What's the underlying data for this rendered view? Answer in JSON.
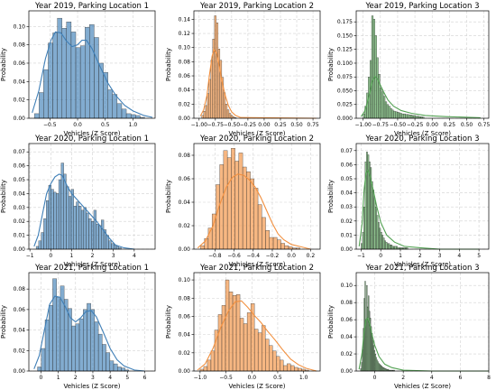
{
  "colors": {
    "blue": "#3f7fb7",
    "orange": "#f2903f",
    "green": "#52a152",
    "grid": "#d2d2d2"
  },
  "chart_data": [
    {
      "type": "histogram",
      "title": "Year 2019, Parking Location 1",
      "xlabel": "Vehicles (Z Score)",
      "ylabel": "Probability",
      "color": "blue",
      "xlim": [
        -0.88,
        1.4
      ],
      "ylim": [
        0,
        0.117
      ],
      "xticks": [
        -0.5,
        0.0,
        0.5,
        1.0
      ],
      "xtick_labels": [
        "−0.5",
        "0.0",
        "0.5",
        "1.0"
      ],
      "yticks": [
        0.0,
        0.02,
        0.04,
        0.06,
        0.08,
        0.1
      ],
      "ytick_labels": [
        "0.00",
        "0.02",
        "0.04",
        "0.06",
        "0.08",
        "0.10"
      ],
      "bins_start": -0.78,
      "bin_width": 0.083,
      "values": [
        0.005,
        0.028,
        0.053,
        0.082,
        0.093,
        0.109,
        0.098,
        0.105,
        0.094,
        0.077,
        0.079,
        0.099,
        0.102,
        0.088,
        0.06,
        0.05,
        0.031,
        0.026,
        0.016,
        0.01,
        0.005,
        0.004,
        0.003,
        0.001
      ],
      "kde": [
        [
          -0.82,
          0.006
        ],
        [
          -0.7,
          0.03
        ],
        [
          -0.58,
          0.065
        ],
        [
          -0.48,
          0.085
        ],
        [
          -0.4,
          0.094
        ],
        [
          -0.3,
          0.093
        ],
        [
          -0.2,
          0.084
        ],
        [
          -0.1,
          0.078
        ],
        [
          0.0,
          0.08
        ],
        [
          0.08,
          0.085
        ],
        [
          0.16,
          0.085
        ],
        [
          0.26,
          0.076
        ],
        [
          0.4,
          0.057
        ],
        [
          0.55,
          0.038
        ],
        [
          0.7,
          0.024
        ],
        [
          0.85,
          0.014
        ],
        [
          1.0,
          0.008
        ],
        [
          1.2,
          0.003
        ],
        [
          1.35,
          0.001
        ]
      ]
    },
    {
      "type": "histogram",
      "title": "Year 2019, Parking Location 2",
      "xlabel": "Vehicles (Z Score)",
      "ylabel": "Probability",
      "color": "orange",
      "xlim": [
        -1.08,
        0.86
      ],
      "ylim": [
        0,
        0.152
      ],
      "xticks": [
        -1.0,
        -0.75,
        -0.5,
        -0.25,
        0.0,
        0.25,
        0.5,
        0.75
      ],
      "xtick_labels": [
        "−1.00",
        "−0.75",
        "−0.50",
        "−0.25",
        "0.00",
        "0.25",
        "0.50",
        "0.75"
      ],
      "yticks": [
        0.0,
        0.02,
        0.04,
        0.06,
        0.08,
        0.1,
        0.12,
        0.14
      ],
      "ytick_labels": [
        "0.00",
        "0.02",
        "0.04",
        "0.06",
        "0.08",
        "0.10",
        "0.12",
        "0.14"
      ],
      "bins_start": -0.96,
      "bin_width": 0.028,
      "values": [
        0.004,
        0.01,
        0.018,
        0.035,
        0.055,
        0.082,
        0.112,
        0.145,
        0.135,
        0.098,
        0.082,
        0.058,
        0.036,
        0.02,
        0.012,
        0.007,
        0.004,
        0.002,
        0.001
      ],
      "kde": [
        [
          -0.98,
          0.003
        ],
        [
          -0.93,
          0.012
        ],
        [
          -0.88,
          0.032
        ],
        [
          -0.84,
          0.062
        ],
        [
          -0.8,
          0.088
        ],
        [
          -0.77,
          0.097
        ],
        [
          -0.73,
          0.092
        ],
        [
          -0.69,
          0.074
        ],
        [
          -0.65,
          0.053
        ],
        [
          -0.6,
          0.033
        ],
        [
          -0.55,
          0.018
        ],
        [
          -0.5,
          0.009
        ],
        [
          -0.44,
          0.004
        ],
        [
          -0.36,
          0.001
        ],
        [
          0.8,
          0.0
        ]
      ]
    },
    {
      "type": "histogram",
      "title": "Year 2019, Parking Location 3",
      "xlabel": "Vehicles (Z Score)",
      "ylabel": "Probability",
      "color": "green",
      "xlim": [
        -1.1,
        0.82
      ],
      "ylim": [
        0,
        0.195
      ],
      "xticks": [
        -1.0,
        -0.75,
        -0.5,
        -0.25,
        0.0,
        0.25,
        0.5,
        0.75
      ],
      "xtick_labels": [
        "−1.00",
        "−0.75",
        "−0.50",
        "−0.25",
        "0.00",
        "0.25",
        "0.50",
        "0.75"
      ],
      "yticks": [
        0.0,
        0.025,
        0.05,
        0.075,
        0.1,
        0.125,
        0.15,
        0.175
      ],
      "ytick_labels": [
        "0.000",
        "0.025",
        "0.050",
        "0.075",
        "0.100",
        "0.125",
        "0.150",
        "0.175"
      ],
      "bins_start": -1.0,
      "bin_width": 0.0245,
      "values": [
        0.008,
        0.022,
        0.046,
        0.075,
        0.105,
        0.186,
        0.18,
        0.15,
        0.11,
        0.08,
        0.055,
        0.048,
        0.04,
        0.03,
        0.025,
        0.022,
        0.018,
        0.015,
        0.013,
        0.012,
        0.011,
        0.01,
        0.009,
        0.008,
        0.008,
        0.007,
        0.007,
        0.006,
        0.006,
        0.005,
        0.005,
        0.004,
        0.004,
        0.003,
        0.003,
        0.002
      ],
      "kde": [
        [
          -1.03,
          0.003
        ],
        [
          -0.98,
          0.012
        ],
        [
          -0.94,
          0.028
        ],
        [
          -0.9,
          0.048
        ],
        [
          -0.87,
          0.066
        ],
        [
          -0.83,
          0.076
        ],
        [
          -0.79,
          0.071
        ],
        [
          -0.75,
          0.06
        ],
        [
          -0.7,
          0.047
        ],
        [
          -0.64,
          0.033
        ],
        [
          -0.56,
          0.022
        ],
        [
          -0.45,
          0.014
        ],
        [
          -0.3,
          0.009
        ],
        [
          -0.1,
          0.005
        ],
        [
          0.2,
          0.003
        ],
        [
          0.7,
          0.001
        ]
      ]
    },
    {
      "type": "histogram",
      "title": "Year 2020, Parking Location 1",
      "xlabel": "Vehicles (Z Score)",
      "ylabel": "Probability",
      "color": "blue",
      "xlim": [
        -1.05,
        5.0
      ],
      "ylim": [
        0,
        0.076
      ],
      "xticks": [
        -1,
        0,
        1,
        2,
        3,
        4
      ],
      "xtick_labels": [
        "−1",
        "0",
        "1",
        "2",
        "3",
        "4"
      ],
      "yticks": [
        0.0,
        0.01,
        0.02,
        0.03,
        0.04,
        0.05,
        0.06,
        0.07
      ],
      "ytick_labels": [
        "0.00",
        "0.01",
        "0.02",
        "0.03",
        "0.04",
        "0.05",
        "0.06",
        "0.07"
      ],
      "bins_start": -0.7,
      "bin_width": 0.12,
      "values": [
        0.002,
        0.006,
        0.012,
        0.022,
        0.035,
        0.046,
        0.043,
        0.041,
        0.04,
        0.05,
        0.062,
        0.054,
        0.045,
        0.038,
        0.043,
        0.031,
        0.034,
        0.031,
        0.028,
        0.03,
        0.026,
        0.022,
        0.02,
        0.028,
        0.018,
        0.017,
        0.021,
        0.014,
        0.01,
        0.006,
        0.004,
        0.003,
        0.002,
        0.001
      ],
      "kde": [
        [
          -0.8,
          0.002
        ],
        [
          -0.6,
          0.01
        ],
        [
          -0.4,
          0.025
        ],
        [
          -0.2,
          0.04
        ],
        [
          0.0,
          0.047
        ],
        [
          0.2,
          0.052
        ],
        [
          0.4,
          0.054
        ],
        [
          0.55,
          0.053
        ],
        [
          0.8,
          0.045
        ],
        [
          1.0,
          0.04
        ],
        [
          1.3,
          0.035
        ],
        [
          1.6,
          0.03
        ],
        [
          1.9,
          0.025
        ],
        [
          2.2,
          0.02
        ],
        [
          2.5,
          0.014
        ],
        [
          2.8,
          0.008
        ],
        [
          3.1,
          0.003
        ],
        [
          3.5,
          0.001
        ],
        [
          4.0,
          0.0
        ]
      ]
    },
    {
      "type": "histogram",
      "title": "Year 2020, Parking Location 2",
      "xlabel": "Vehicles (Z Score)",
      "ylabel": "Probability",
      "color": "orange",
      "xlim": [
        -1.02,
        0.3
      ],
      "ylim": [
        0,
        0.09
      ],
      "xticks": [
        -0.8,
        -0.6,
        -0.4,
        -0.2,
        0.0,
        0.2
      ],
      "xtick_labels": [
        "−0.8",
        "−0.6",
        "−0.4",
        "−0.2",
        "0.0",
        "0.2"
      ],
      "yticks": [
        0.0,
        0.02,
        0.04,
        0.06,
        0.08
      ],
      "ytick_labels": [
        "0.00",
        "0.02",
        "0.04",
        "0.06",
        "0.08"
      ],
      "bins_start": -0.95,
      "bin_width": 0.04,
      "values": [
        0.003,
        0.009,
        0.018,
        0.03,
        0.055,
        0.072,
        0.084,
        0.078,
        0.086,
        0.075,
        0.082,
        0.07,
        0.066,
        0.06,
        0.052,
        0.038,
        0.027,
        0.016,
        0.01,
        0.01,
        0.008,
        0.005,
        0.003,
        0.002,
        0.001,
        0.001
      ],
      "kde": [
        [
          -0.98,
          0.001
        ],
        [
          -0.9,
          0.007
        ],
        [
          -0.82,
          0.02
        ],
        [
          -0.75,
          0.038
        ],
        [
          -0.68,
          0.053
        ],
        [
          -0.62,
          0.061
        ],
        [
          -0.56,
          0.064
        ],
        [
          -0.5,
          0.063
        ],
        [
          -0.44,
          0.059
        ],
        [
          -0.38,
          0.053
        ],
        [
          -0.32,
          0.044
        ],
        [
          -0.26,
          0.033
        ],
        [
          -0.2,
          0.022
        ],
        [
          -0.14,
          0.013
        ],
        [
          -0.08,
          0.008
        ],
        [
          0.0,
          0.004
        ],
        [
          0.1,
          0.002
        ],
        [
          0.2,
          0.0
        ]
      ]
    },
    {
      "type": "histogram",
      "title": "Year 2020, Parking Location 3",
      "xlabel": "Vehicles (Z Score)",
      "ylabel": "Probability",
      "color": "green",
      "xlim": [
        -1.25,
        5.5
      ],
      "ylim": [
        0,
        0.075
      ],
      "xticks": [
        -1,
        0,
        1,
        2,
        3,
        4,
        5
      ],
      "xtick_labels": [
        "−1",
        "0",
        "1",
        "2",
        "3",
        "4",
        "5"
      ],
      "yticks": [
        0.0,
        0.01,
        0.02,
        0.03,
        0.04,
        0.05,
        0.06,
        0.07
      ],
      "ytick_labels": [
        "0.00",
        "0.01",
        "0.02",
        "0.03",
        "0.04",
        "0.05",
        "0.06",
        "0.07"
      ],
      "bins_start": -1.0,
      "bin_width": 0.066,
      "values": [
        0.004,
        0.012,
        0.03,
        0.062,
        0.069,
        0.067,
        0.062,
        0.058,
        0.048,
        0.042,
        0.036,
        0.03,
        0.024,
        0.019,
        0.015,
        0.012,
        0.01,
        0.008,
        0.006,
        0.005,
        0.004,
        0.004,
        0.003,
        0.003,
        0.002,
        0.002,
        0.002,
        0.002,
        0.001,
        0.001,
        0.001,
        0.001,
        0.001,
        0.001,
        0.001,
        0.001
      ],
      "kde": [
        [
          -1.1,
          0.002
        ],
        [
          -0.95,
          0.018
        ],
        [
          -0.85,
          0.042
        ],
        [
          -0.75,
          0.054
        ],
        [
          -0.65,
          0.056
        ],
        [
          -0.55,
          0.052
        ],
        [
          -0.4,
          0.043
        ],
        [
          -0.2,
          0.03
        ],
        [
          0.0,
          0.019
        ],
        [
          0.3,
          0.01
        ],
        [
          0.7,
          0.005
        ],
        [
          1.2,
          0.002
        ],
        [
          2.0,
          0.001
        ],
        [
          3.0,
          0.0
        ],
        [
          5.0,
          0.0
        ]
      ]
    },
    {
      "type": "histogram",
      "title": "Year 2021, Parking Location 1",
      "xlabel": "Vehicles (Z Score)",
      "ylabel": "Probability",
      "color": "blue",
      "xlim": [
        -0.7,
        6.6
      ],
      "ylim": [
        0,
        0.096
      ],
      "xticks": [
        0,
        1,
        2,
        3,
        4,
        5,
        6
      ],
      "xtick_labels": [
        "0",
        "1",
        "2",
        "3",
        "4",
        "5",
        "6"
      ],
      "yticks": [
        0.0,
        0.02,
        0.04,
        0.06,
        0.08
      ],
      "ytick_labels": [
        "0.00",
        "0.02",
        "0.04",
        "0.06",
        "0.08"
      ],
      "bins_start": -0.2,
      "bin_width": 0.22,
      "values": [
        0.004,
        0.022,
        0.05,
        0.064,
        0.09,
        0.072,
        0.083,
        0.07,
        0.061,
        0.044,
        0.046,
        0.051,
        0.06,
        0.066,
        0.06,
        0.048,
        0.036,
        0.026,
        0.018,
        0.01,
        0.007,
        0.004,
        0.003,
        0.001
      ],
      "kde": [
        [
          -0.4,
          0.002
        ],
        [
          -0.1,
          0.015
        ],
        [
          0.2,
          0.04
        ],
        [
          0.5,
          0.065
        ],
        [
          0.8,
          0.073
        ],
        [
          1.1,
          0.072
        ],
        [
          1.4,
          0.063
        ],
        [
          1.7,
          0.052
        ],
        [
          2.0,
          0.048
        ],
        [
          2.3,
          0.052
        ],
        [
          2.6,
          0.058
        ],
        [
          2.9,
          0.059
        ],
        [
          3.2,
          0.053
        ],
        [
          3.6,
          0.038
        ],
        [
          4.0,
          0.022
        ],
        [
          4.4,
          0.011
        ],
        [
          4.8,
          0.005
        ],
        [
          5.4,
          0.001
        ],
        [
          6.0,
          0.0
        ]
      ]
    },
    {
      "type": "histogram",
      "title": "Year 2021, Parking Location 2",
      "xlabel": "Vehicles (Z Score)",
      "ylabel": "Probability",
      "color": "orange",
      "xlim": [
        -1.12,
        1.32
      ],
      "ylim": [
        0,
        0.108
      ],
      "xticks": [
        -1.0,
        -0.5,
        0.0,
        0.5,
        1.0
      ],
      "xtick_labels": [
        "−1.0",
        "−0.5",
        "0.0",
        "0.5",
        "1.0"
      ],
      "yticks": [
        0.0,
        0.02,
        0.04,
        0.06,
        0.08,
        0.1
      ],
      "ytick_labels": [
        "0.00",
        "0.02",
        "0.04",
        "0.06",
        "0.08",
        "0.10"
      ],
      "bins_start": -1.0,
      "bin_width": 0.07,
      "values": [
        0.002,
        0.005,
        0.012,
        0.022,
        0.045,
        0.062,
        0.072,
        0.1,
        0.087,
        0.083,
        0.084,
        0.058,
        0.052,
        0.064,
        0.074,
        0.046,
        0.042,
        0.05,
        0.035,
        0.028,
        0.022,
        0.016,
        0.012,
        0.006,
        0.008,
        0.006,
        0.004,
        0.003,
        0.002,
        0.001
      ],
      "kde": [
        [
          -1.05,
          0.001
        ],
        [
          -0.9,
          0.008
        ],
        [
          -0.75,
          0.025
        ],
        [
          -0.6,
          0.048
        ],
        [
          -0.45,
          0.066
        ],
        [
          -0.32,
          0.076
        ],
        [
          -0.2,
          0.077
        ],
        [
          -0.08,
          0.07
        ],
        [
          0.05,
          0.061
        ],
        [
          0.18,
          0.053
        ],
        [
          0.3,
          0.044
        ],
        [
          0.45,
          0.034
        ],
        [
          0.6,
          0.023
        ],
        [
          0.75,
          0.013
        ],
        [
          0.9,
          0.007
        ],
        [
          1.05,
          0.003
        ],
        [
          1.25,
          0.0
        ]
      ]
    },
    {
      "type": "histogram",
      "title": "Year 2021, Parking Location 3",
      "xlabel": "Vehicles (Z Score)",
      "ylabel": "Probability",
      "color": "green",
      "xlim": [
        -1.3,
        8.0
      ],
      "ylim": [
        0,
        0.115
      ],
      "xticks": [
        0,
        2,
        4,
        6,
        8
      ],
      "xtick_labels": [
        "0",
        "2",
        "4",
        "6",
        "8"
      ],
      "yticks": [
        0.0,
        0.02,
        0.04,
        0.06,
        0.08,
        0.1
      ],
      "ytick_labels": [
        "0.00",
        "0.02",
        "0.04",
        "0.06",
        "0.08",
        "0.10"
      ],
      "bins_start": -1.0,
      "bin_width": 0.06,
      "values": [
        0.003,
        0.01,
        0.025,
        0.05,
        0.085,
        0.105,
        0.06,
        0.1,
        0.075,
        0.088,
        0.07,
        0.062,
        0.052,
        0.044,
        0.036,
        0.03,
        0.024,
        0.02,
        0.016,
        0.013,
        0.011,
        0.009,
        0.008,
        0.007,
        0.006,
        0.005,
        0.004,
        0.004,
        0.003,
        0.003,
        0.002,
        0.002,
        0.002,
        0.001,
        0.001,
        0.001,
        0.001,
        0.001,
        0.001,
        0.001
      ],
      "kde": [
        [
          -1.1,
          0.002
        ],
        [
          -0.9,
          0.02
        ],
        [
          -0.75,
          0.045
        ],
        [
          -0.62,
          0.06
        ],
        [
          -0.5,
          0.062
        ],
        [
          -0.38,
          0.056
        ],
        [
          -0.2,
          0.043
        ],
        [
          0.0,
          0.03
        ],
        [
          0.3,
          0.017
        ],
        [
          0.7,
          0.008
        ],
        [
          1.2,
          0.004
        ],
        [
          2.0,
          0.001
        ],
        [
          4.0,
          0.0
        ],
        [
          8.0,
          0.0
        ]
      ]
    }
  ]
}
